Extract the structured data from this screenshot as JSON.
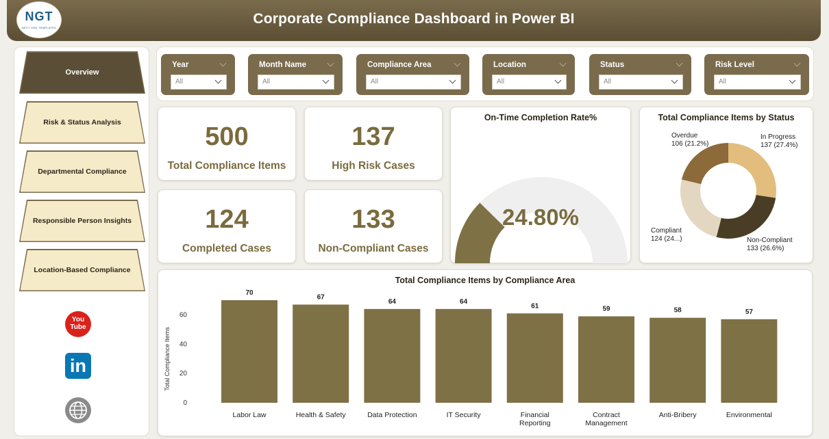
{
  "header": {
    "title": "Corporate Compliance Dashboard in Power BI",
    "logo_text": "NGT",
    "logo_subtext": "NEXT GEN TEMPLATES"
  },
  "sidebar": {
    "items": [
      {
        "label": "Overview",
        "active": true
      },
      {
        "label": "Risk & Status Analysis",
        "active": false
      },
      {
        "label": "Departmental Compliance",
        "active": false
      },
      {
        "label": "Responsible Person Insights",
        "active": false
      },
      {
        "label": "Location-Based Compliance",
        "active": false
      }
    ],
    "social": {
      "youtube_line1": "You",
      "youtube_line2": "Tube",
      "linkedin": "in"
    }
  },
  "slicers": [
    {
      "label": "Year",
      "value": "All"
    },
    {
      "label": "Month Name",
      "value": "All"
    },
    {
      "label": "Compliance Area",
      "value": "All"
    },
    {
      "label": "Location",
      "value": "All"
    },
    {
      "label": "Status",
      "value": "All"
    },
    {
      "label": "Risk Level",
      "value": "All"
    }
  ],
  "kpis": [
    {
      "value": "500",
      "label": "Total Compliance Items"
    },
    {
      "value": "137",
      "label": "High Risk Cases"
    },
    {
      "value": "124",
      "label": "Completed Cases"
    },
    {
      "value": "133",
      "label": "Non-Compliant Cases"
    }
  ],
  "gauge": {
    "title": "On-Time Completion Rate%",
    "value_text": "24.80%",
    "fraction": 0.248
  },
  "donut": {
    "title": "Total Compliance Items by Status",
    "slices": [
      {
        "name": "In Progress",
        "detail": "137 (27.4%)",
        "value": 137,
        "color": "#e3bd7e"
      },
      {
        "name": "Non-Compliant",
        "detail": "133 (26.6%)",
        "value": 133,
        "color": "#4a3d25"
      },
      {
        "name": "Compliant",
        "detail": "124 (24...)",
        "value": 124,
        "color": "#e3d7c1"
      },
      {
        "name": "Overdue",
        "detail": "106 (21.2%)",
        "value": 106,
        "color": "#8c6a3a"
      }
    ]
  },
  "colors": {
    "accent": "#7a6b4c",
    "bar": "#7f7146",
    "kpi_text": "#7a6b3e",
    "gauge_track": "#efefef"
  },
  "chart_data": {
    "type": "bar",
    "title": "Total Compliance Items by Compliance Area",
    "ylabel": "Total Compliance Items",
    "xlabel": "",
    "ylim": [
      0,
      70
    ],
    "yticks": [
      0,
      20,
      40,
      60
    ],
    "categories": [
      "Labor Law",
      "Health & Safety",
      "Data Protection",
      "IT Security",
      "Financial Reporting",
      "Contract Management",
      "Anti-Bribery",
      "Environmental"
    ],
    "values": [
      70,
      67,
      64,
      64,
      61,
      59,
      58,
      57
    ]
  }
}
